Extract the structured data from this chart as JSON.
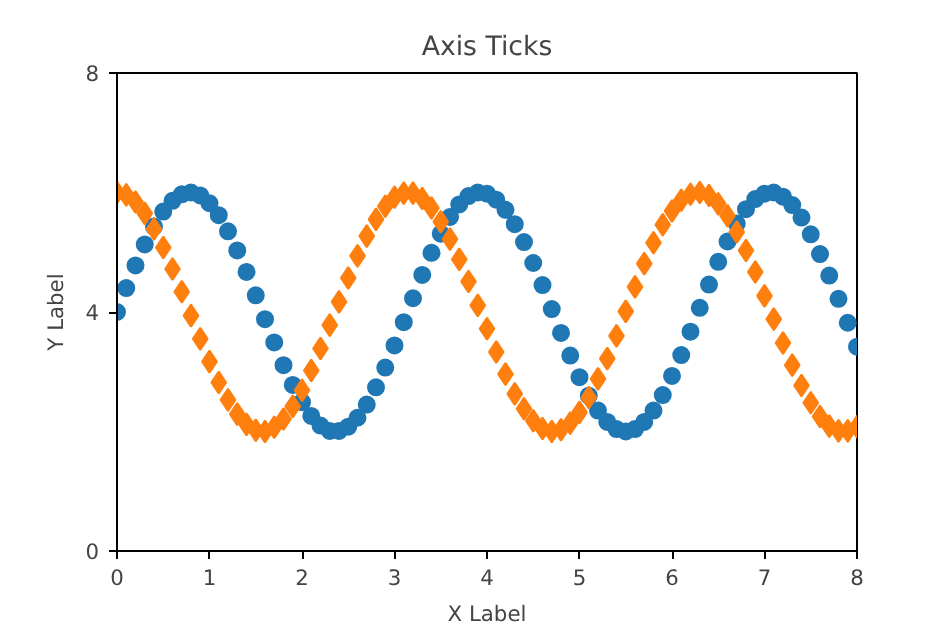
{
  "chart_data": {
    "type": "scatter",
    "title": "Axis Ticks",
    "xlabel": "X Label",
    "ylabel": "Y Label",
    "xlim": [
      0,
      8
    ],
    "ylim": [
      0,
      8
    ],
    "xticks": [
      0,
      1,
      2,
      3,
      4,
      5,
      6,
      7,
      8
    ],
    "yticks": [
      0,
      4,
      8
    ],
    "grid": false,
    "x": [
      0,
      0.1,
      0.2,
      0.3,
      0.4,
      0.5,
      0.6,
      0.7,
      0.8,
      0.9,
      1,
      1.1,
      1.2,
      1.3,
      1.4,
      1.5,
      1.6,
      1.7,
      1.8,
      1.9,
      2,
      2.1,
      2.2,
      2.3,
      2.4,
      2.5,
      2.6,
      2.7,
      2.8,
      2.9,
      3,
      3.1,
      3.2,
      3.3,
      3.4,
      3.5,
      3.6,
      3.7,
      3.8,
      3.9,
      4,
      4.1,
      4.2,
      4.3,
      4.4,
      4.5,
      4.6,
      4.7,
      4.8,
      4.9,
      5,
      5.1,
      5.2,
      5.3,
      5.4,
      5.5,
      5.6,
      5.7,
      5.8,
      5.9,
      6,
      6.1,
      6.2,
      6.3,
      6.4,
      6.5,
      6.6,
      6.7,
      6.8,
      6.9,
      7,
      7.1,
      7.2,
      7.3,
      7.4,
      7.5,
      7.6,
      7.7,
      7.8,
      7.9,
      8
    ],
    "series": [
      {
        "color": "#1f77b4",
        "marker": "circle",
        "values": [
          4.0,
          4.4,
          4.78,
          5.13,
          5.43,
          5.68,
          5.86,
          5.97,
          6.0,
          5.95,
          5.82,
          5.62,
          5.35,
          5.03,
          4.67,
          4.28,
          3.88,
          3.49,
          3.11,
          2.78,
          2.49,
          2.26,
          2.1,
          2.01,
          2.01,
          2.08,
          2.23,
          2.45,
          2.74,
          3.07,
          3.44,
          3.83,
          4.23,
          4.62,
          4.99,
          5.31,
          5.59,
          5.8,
          5.94,
          6.0,
          5.98,
          5.88,
          5.71,
          5.47,
          5.17,
          4.82,
          4.45,
          4.05,
          3.65,
          3.27,
          2.91,
          2.6,
          2.35,
          2.16,
          2.04,
          2.0,
          2.04,
          2.16,
          2.35,
          2.61,
          2.93,
          3.28,
          3.67,
          4.07,
          4.46,
          4.84,
          5.18,
          5.48,
          5.72,
          5.89,
          5.98,
          6.0,
          5.93,
          5.79,
          5.58,
          5.3,
          4.97,
          4.61,
          4.22,
          3.82,
          3.42
        ]
      },
      {
        "color": "#ff7f0e",
        "marker": "diamond",
        "values": [
          6.0,
          5.96,
          5.84,
          5.65,
          5.39,
          5.08,
          4.72,
          4.34,
          3.94,
          3.55,
          3.17,
          2.82,
          2.53,
          2.29,
          2.12,
          2.02,
          2.0,
          2.07,
          2.21,
          2.42,
          2.69,
          3.02,
          3.39,
          3.78,
          4.17,
          4.57,
          4.94,
          5.27,
          5.55,
          5.77,
          5.92,
          5.99,
          5.99,
          5.9,
          5.74,
          5.51,
          5.22,
          4.88,
          4.51,
          4.11,
          3.72,
          3.33,
          2.96,
          2.63,
          2.38,
          2.18,
          2.05,
          2.0,
          2.03,
          2.14,
          2.32,
          2.57,
          2.88,
          3.22,
          3.6,
          4.01,
          4.42,
          4.81,
          5.16,
          5.46,
          5.69,
          5.87,
          5.97,
          6.0,
          5.95,
          5.81,
          5.61,
          5.34,
          5.03,
          4.67,
          4.27,
          3.88,
          3.48,
          3.11,
          2.77,
          2.48,
          2.25,
          2.09,
          2.01,
          2.01,
          2.08
        ]
      }
    ]
  }
}
